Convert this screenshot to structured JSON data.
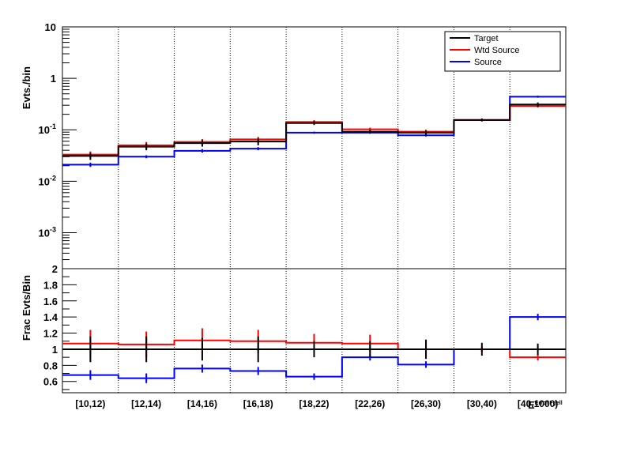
{
  "chart_data": [
    {
      "type": "histogram",
      "scale": "log",
      "ylabel": "Evts./bin",
      "ylim": [
        0.0002,
        10
      ],
      "y_ticks": [
        {
          "v": 0.001,
          "base": "10",
          "exp": "-3"
        },
        {
          "v": 0.01,
          "base": "10",
          "exp": "-2"
        },
        {
          "v": 0.1,
          "base": "10",
          "exp": "-1"
        },
        {
          "v": 1,
          "base": "1",
          "exp": ""
        },
        {
          "v": 10,
          "base": "10",
          "exp": ""
        }
      ],
      "legend": {
        "placement": "top-right",
        "entries": [
          {
            "name": "Target",
            "color": "#000000"
          },
          {
            "name": "Wtd Source",
            "color": "#ff0000"
          },
          {
            "name": "Source",
            "color": "#0000ff"
          }
        ]
      },
      "series": [
        {
          "name": "Target",
          "color": "#000000",
          "values": [
            0.031,
            0.047,
            0.055,
            0.059,
            0.135,
            0.092,
            0.088,
            0.155,
            0.31
          ],
          "err_low": [
            0.026,
            0.04,
            0.047,
            0.05,
            0.124,
            0.084,
            0.078,
            0.145,
            0.28
          ],
          "err_high": [
            0.036,
            0.054,
            0.063,
            0.068,
            0.147,
            0.1,
            0.098,
            0.166,
            0.34
          ]
        },
        {
          "name": "Wtd Source",
          "color": "#ff0000",
          "values": [
            0.033,
            0.05,
            0.058,
            0.065,
            0.142,
            0.102,
            0.092,
            0.155,
            0.29
          ],
          "err_low": [
            0.029,
            0.043,
            0.05,
            0.057,
            0.13,
            0.094,
            0.084,
            0.148,
            0.27
          ],
          "err_high": [
            0.038,
            0.058,
            0.066,
            0.073,
            0.154,
            0.11,
            0.1,
            0.162,
            0.31
          ]
        },
        {
          "name": "Source",
          "color": "#0000ff",
          "values": [
            0.021,
            0.03,
            0.039,
            0.043,
            0.088,
            0.088,
            0.078,
            0.155,
            0.44
          ],
          "err_low": [
            0.019,
            0.028,
            0.036,
            0.04,
            0.084,
            0.084,
            0.074,
            0.15,
            0.42
          ],
          "err_high": [
            0.023,
            0.032,
            0.042,
            0.046,
            0.092,
            0.092,
            0.082,
            0.16,
            0.46
          ]
        }
      ]
    },
    {
      "type": "histogram",
      "scale": "linear",
      "ylabel": "Frac Evts/Bin",
      "ylim": [
        0.46,
        2.0
      ],
      "y_ticks": [
        0.6,
        0.8,
        1,
        1.2,
        1.4,
        1.6,
        1.8,
        2
      ],
      "categories": [
        "[10,12)",
        "[12,14)",
        "[14,16)",
        "[16,18)",
        "[18,22)",
        "[22,26)",
        "[26,30)",
        "[30,40)",
        "[40,1000)"
      ],
      "xlabel": "E",
      "xlabel_sub": "Error,Fgell",
      "series": [
        {
          "name": "Target",
          "color": "#000000",
          "values": [
            1,
            1,
            1,
            1,
            1,
            1,
            1,
            1,
            1
          ],
          "err_low": [
            0.84,
            0.84,
            0.86,
            0.84,
            0.9,
            0.9,
            0.88,
            0.92,
            0.93
          ],
          "err_high": [
            1.16,
            1.16,
            1.14,
            1.16,
            1.1,
            1.1,
            1.12,
            1.08,
            1.07
          ]
        },
        {
          "name": "Wtd Source",
          "color": "#ff0000",
          "values": [
            1.07,
            1.06,
            1.11,
            1.1,
            1.08,
            1.07,
            1.0,
            1.0,
            0.9
          ],
          "err_low": [
            0.9,
            0.9,
            0.95,
            0.95,
            0.96,
            0.96,
            0.91,
            0.97,
            0.86
          ],
          "err_high": [
            1.24,
            1.22,
            1.26,
            1.24,
            1.19,
            1.18,
            1.09,
            1.03,
            0.94
          ]
        },
        {
          "name": "Source",
          "color": "#0000ff",
          "values": [
            0.68,
            0.64,
            0.76,
            0.73,
            0.66,
            0.9,
            0.81,
            1.0,
            1.4
          ],
          "err_low": [
            0.62,
            0.58,
            0.71,
            0.68,
            0.62,
            0.86,
            0.77,
            0.97,
            1.36
          ],
          "err_high": [
            0.74,
            0.7,
            0.81,
            0.78,
            0.7,
            0.94,
            0.85,
            1.03,
            1.44
          ]
        }
      ]
    }
  ]
}
